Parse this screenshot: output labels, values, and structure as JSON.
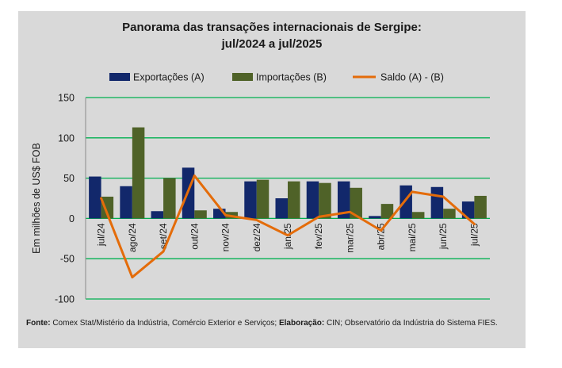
{
  "chart_data": {
    "type": "bar",
    "title_line1": "Panorama  das transações internacionais de Sergipe:",
    "title_line2": "jul/2024 a jul/2025",
    "ylabel": "Em milhões de US$ FOB",
    "xlabel": "",
    "ylim": [
      -100,
      150
    ],
    "yticks": [
      150,
      100,
      50,
      0,
      -50,
      -100
    ],
    "grid": true,
    "legend_position": "top",
    "categories": [
      "jul/24",
      "ago/24",
      "set/24",
      "out/24",
      "nov/24",
      "dez/24",
      "jan/25",
      "fev/25",
      "mar/25",
      "abr/25",
      "mai/25",
      "jun/25",
      "jul/25"
    ],
    "series": [
      {
        "name": "Exportações (A)",
        "type": "bar",
        "color": "#12286b",
        "values": [
          52,
          40,
          9,
          63,
          12,
          46,
          25,
          46,
          46,
          3,
          41,
          39,
          21
        ]
      },
      {
        "name": "Importações (B)",
        "type": "bar",
        "color": "#4f6228",
        "values": [
          27,
          113,
          50,
          10,
          8,
          48,
          46,
          44,
          38,
          18,
          8,
          12,
          28
        ]
      },
      {
        "name": "Saldo (A) - (B)",
        "type": "line",
        "color": "#e46c0a",
        "values": [
          25,
          -73,
          -41,
          53,
          4,
          -2,
          -21,
          2,
          8,
          -15,
          33,
          27,
          -7
        ]
      }
    ]
  },
  "source": {
    "label1": "Fonte:",
    "text1": " Comex Stat/Mistério da Indústria, Comércio Exterior e Serviços; ",
    "label2": "Elaboração:",
    "text2": " CIN; Observatório da Indústria do Sistema FIES."
  }
}
